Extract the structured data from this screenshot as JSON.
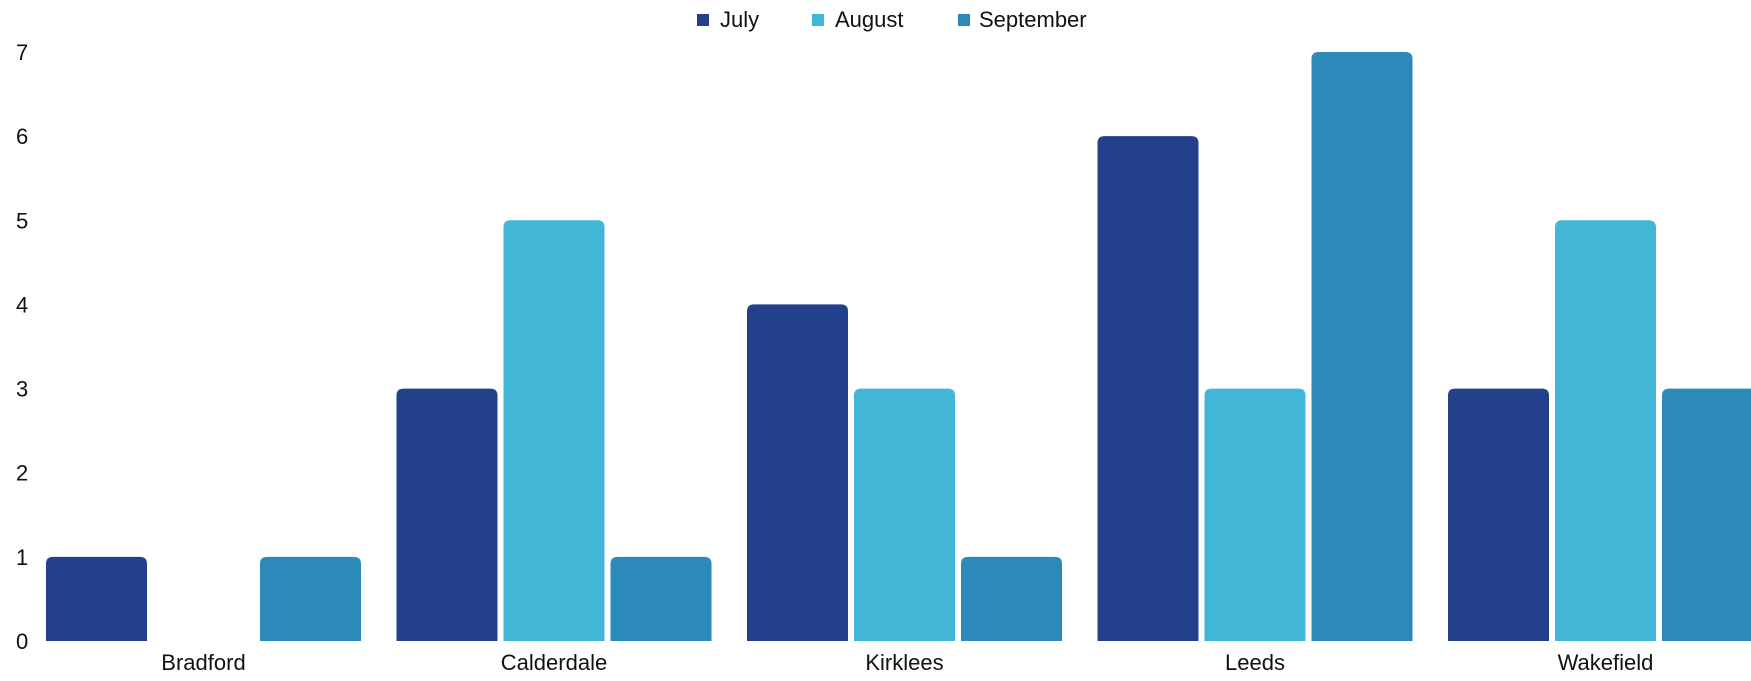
{
  "chart_data": {
    "type": "bar",
    "categories": [
      "Bradford",
      "Calderdale",
      "Kirklees",
      "Leeds",
      "Wakefield"
    ],
    "series": [
      {
        "name": "July",
        "color": "#23418A",
        "values": [
          1,
          3,
          4,
          6,
          3
        ]
      },
      {
        "name": "August",
        "color": "#41B6D6",
        "values": [
          0,
          5,
          3,
          3,
          5
        ]
      },
      {
        "name": "September",
        "color": "#2C8AB9",
        "values": [
          1,
          1,
          1,
          7,
          3
        ]
      }
    ],
    "ylim": [
      0,
      7
    ],
    "yticks": [
      0,
      1,
      2,
      3,
      4,
      5,
      6,
      7
    ],
    "grid": false,
    "legend_position": "top-center"
  }
}
